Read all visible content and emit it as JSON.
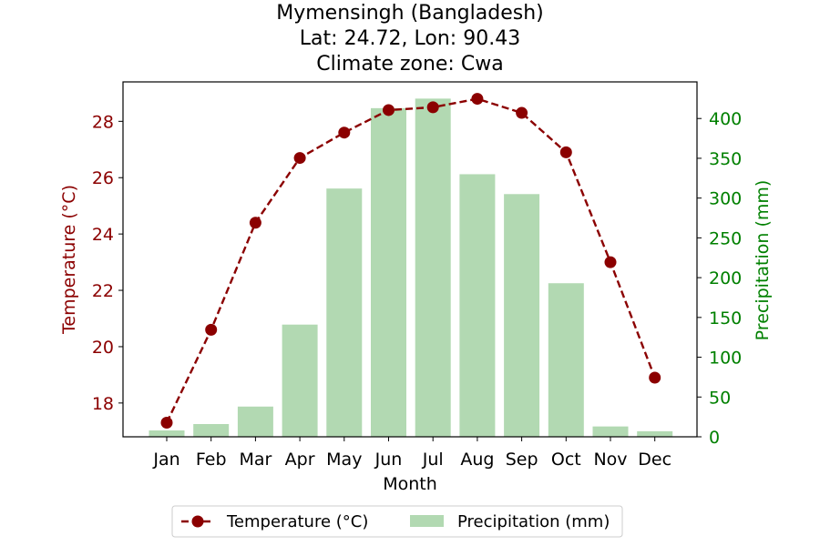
{
  "chart_data": {
    "type": "bar",
    "title_lines": [
      "Mymensingh (Bangladesh)",
      "Lat: 24.72, Lon: 90.43",
      "Climate zone: Cwa"
    ],
    "xlabel": "Month",
    "categories": [
      "Jan",
      "Feb",
      "Mar",
      "Apr",
      "May",
      "Jun",
      "Jul",
      "Aug",
      "Sep",
      "Oct",
      "Nov",
      "Dec"
    ],
    "series": [
      {
        "name": "Temperature (°C)",
        "type": "line",
        "axis": "left",
        "color": "#8b0000",
        "values": [
          17.3,
          20.6,
          24.4,
          26.7,
          27.6,
          28.4,
          28.5,
          28.8,
          28.3,
          26.9,
          23.0,
          18.9
        ]
      },
      {
        "name": "Precipitation (mm)",
        "type": "bar",
        "axis": "right",
        "color": "#b2d9b2",
        "values": [
          8,
          16,
          38,
          141,
          312,
          413,
          425,
          330,
          305,
          193,
          13,
          7
        ]
      }
    ],
    "y_left": {
      "label": "Temperature (°C)",
      "range": [
        16.8,
        29.4
      ],
      "ticks": [
        18,
        20,
        22,
        24,
        26,
        28
      ],
      "color": "#8b0000"
    },
    "y_right": {
      "label": "Precipitation (mm)",
      "range": [
        0,
        446
      ],
      "ticks": [
        0,
        50,
        100,
        150,
        200,
        250,
        300,
        350,
        400
      ],
      "color": "#008000"
    },
    "legend": {
      "position": "bottom-center",
      "entries": [
        "Temperature (°C)",
        "Precipitation (mm)"
      ]
    },
    "grid": false
  }
}
